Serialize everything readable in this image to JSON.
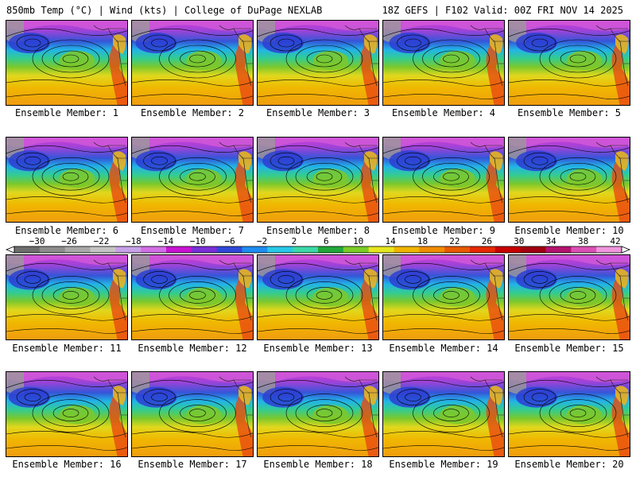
{
  "header": {
    "left": "850mb Temp (°C) | Wind (kts) | College of DuPage NEXLAB",
    "right": "18Z GEFS | F102 Valid: 00Z FRI NOV 14 2025"
  },
  "members": [
    "Ensemble Member: 1",
    "Ensemble Member: 2",
    "Ensemble Member: 3",
    "Ensemble Member: 4",
    "Ensemble Member: 5",
    "Ensemble Member: 6",
    "Ensemble Member: 7",
    "Ensemble Member: 8",
    "Ensemble Member: 9",
    "Ensemble Member: 10",
    "Ensemble Member: 11",
    "Ensemble Member: 12",
    "Ensemble Member: 13",
    "Ensemble Member: 14",
    "Ensemble Member: 15",
    "Ensemble Member: 16",
    "Ensemble Member: 17",
    "Ensemble Member: 18",
    "Ensemble Member: 19",
    "Ensemble Member: 20"
  ],
  "colorbar": {
    "labels": [
      "-30",
      "-26",
      "-22",
      "-18",
      "-14",
      "-10",
      "-6",
      "-2",
      "2",
      "6",
      "10",
      "14",
      "18",
      "22",
      "26",
      "30",
      "34",
      "38",
      "42"
    ],
    "colors": [
      "#6e6e6e",
      "#8c8c8c",
      "#a8a8a8",
      "#c4c4c4",
      "#c8a2e8",
      "#d36ee6",
      "#c814d2",
      "#7a2fd6",
      "#3048d8",
      "#1e8cf0",
      "#28c8e8",
      "#3cd8a8",
      "#22a83a",
      "#7ccc28",
      "#e6e61e",
      "#f0b400",
      "#f08c00",
      "#e85a00",
      "#e62800",
      "#c80000",
      "#a00010",
      "#b4146e",
      "#dc50b4",
      "#f096dc"
    ]
  }
}
